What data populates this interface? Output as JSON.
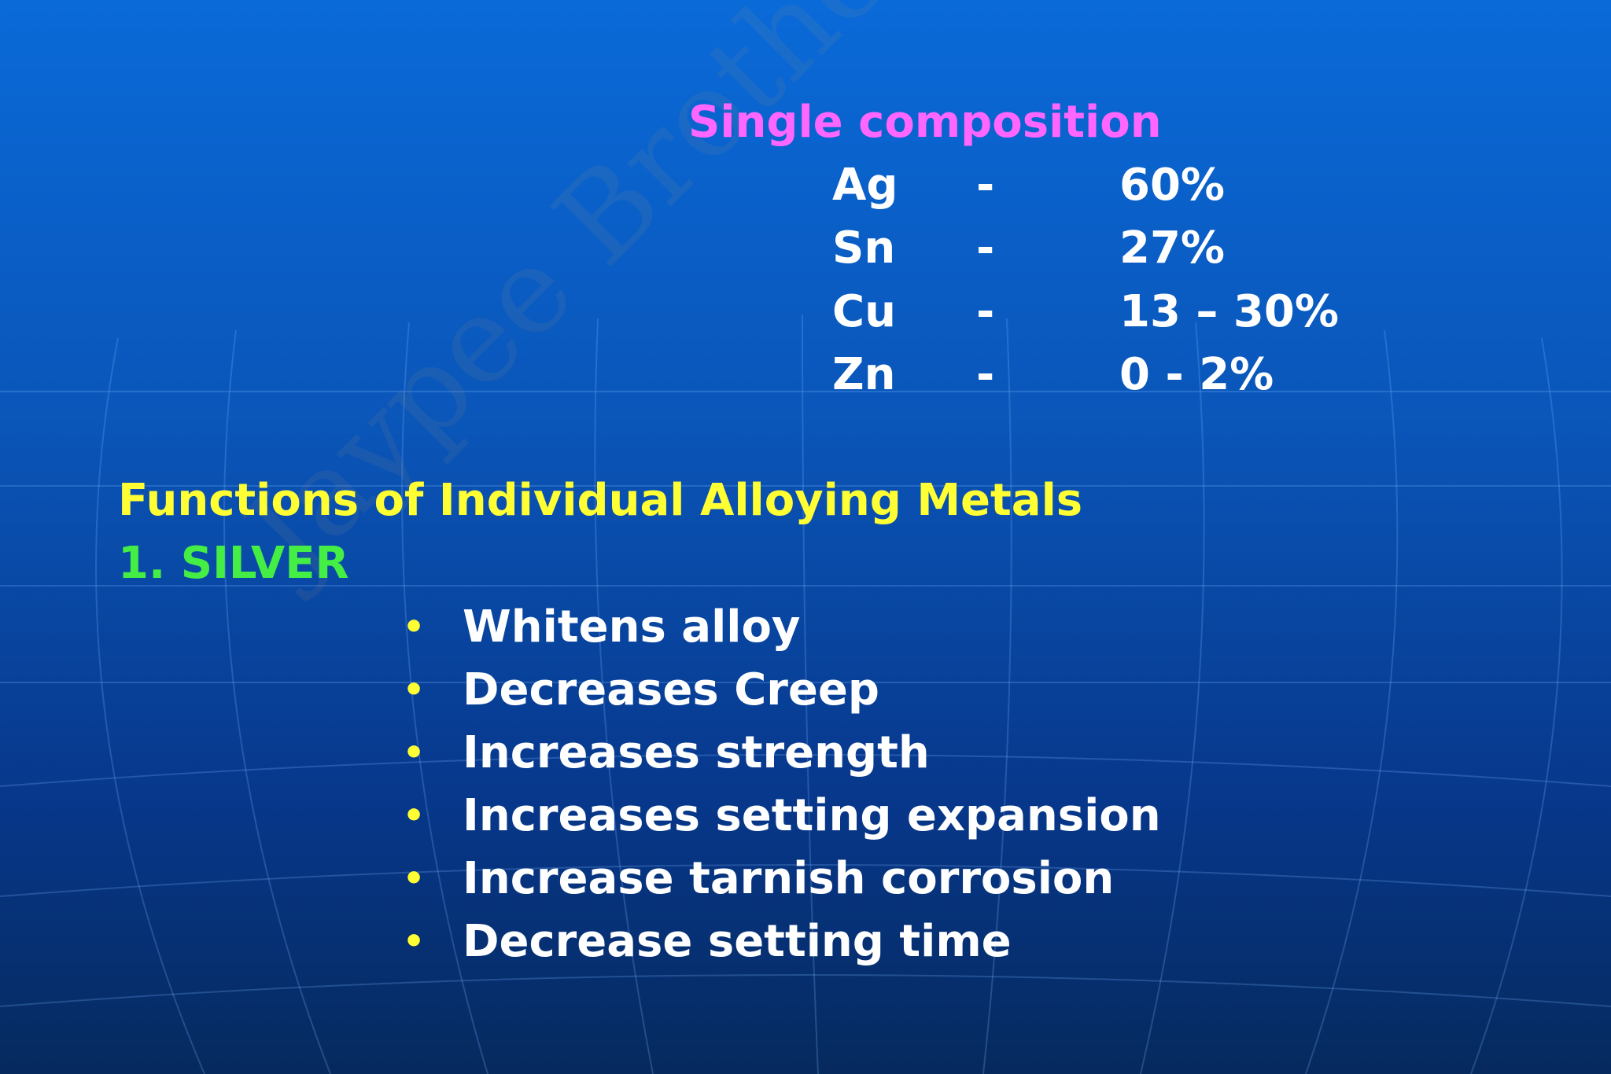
{
  "heading": "Single composition",
  "composition": [
    [
      "Ag",
      "-",
      "60%"
    ],
    [
      "Sn",
      "-",
      "27%"
    ],
    [
      "Cu",
      "-",
      "13 – 30%"
    ],
    [
      "Zn",
      "-",
      "0 - 2%"
    ]
  ],
  "section_title": "Functions of Individual Alloying Metals",
  "subsection": "1. SILVER",
  "bullets": [
    "Whitens alloy",
    "Decreases Creep",
    "Increases strength",
    "Increases setting expansion",
    "Increase tarnish corrosion",
    "Decrease setting time"
  ],
  "watermark": "Jaypee Brothers"
}
